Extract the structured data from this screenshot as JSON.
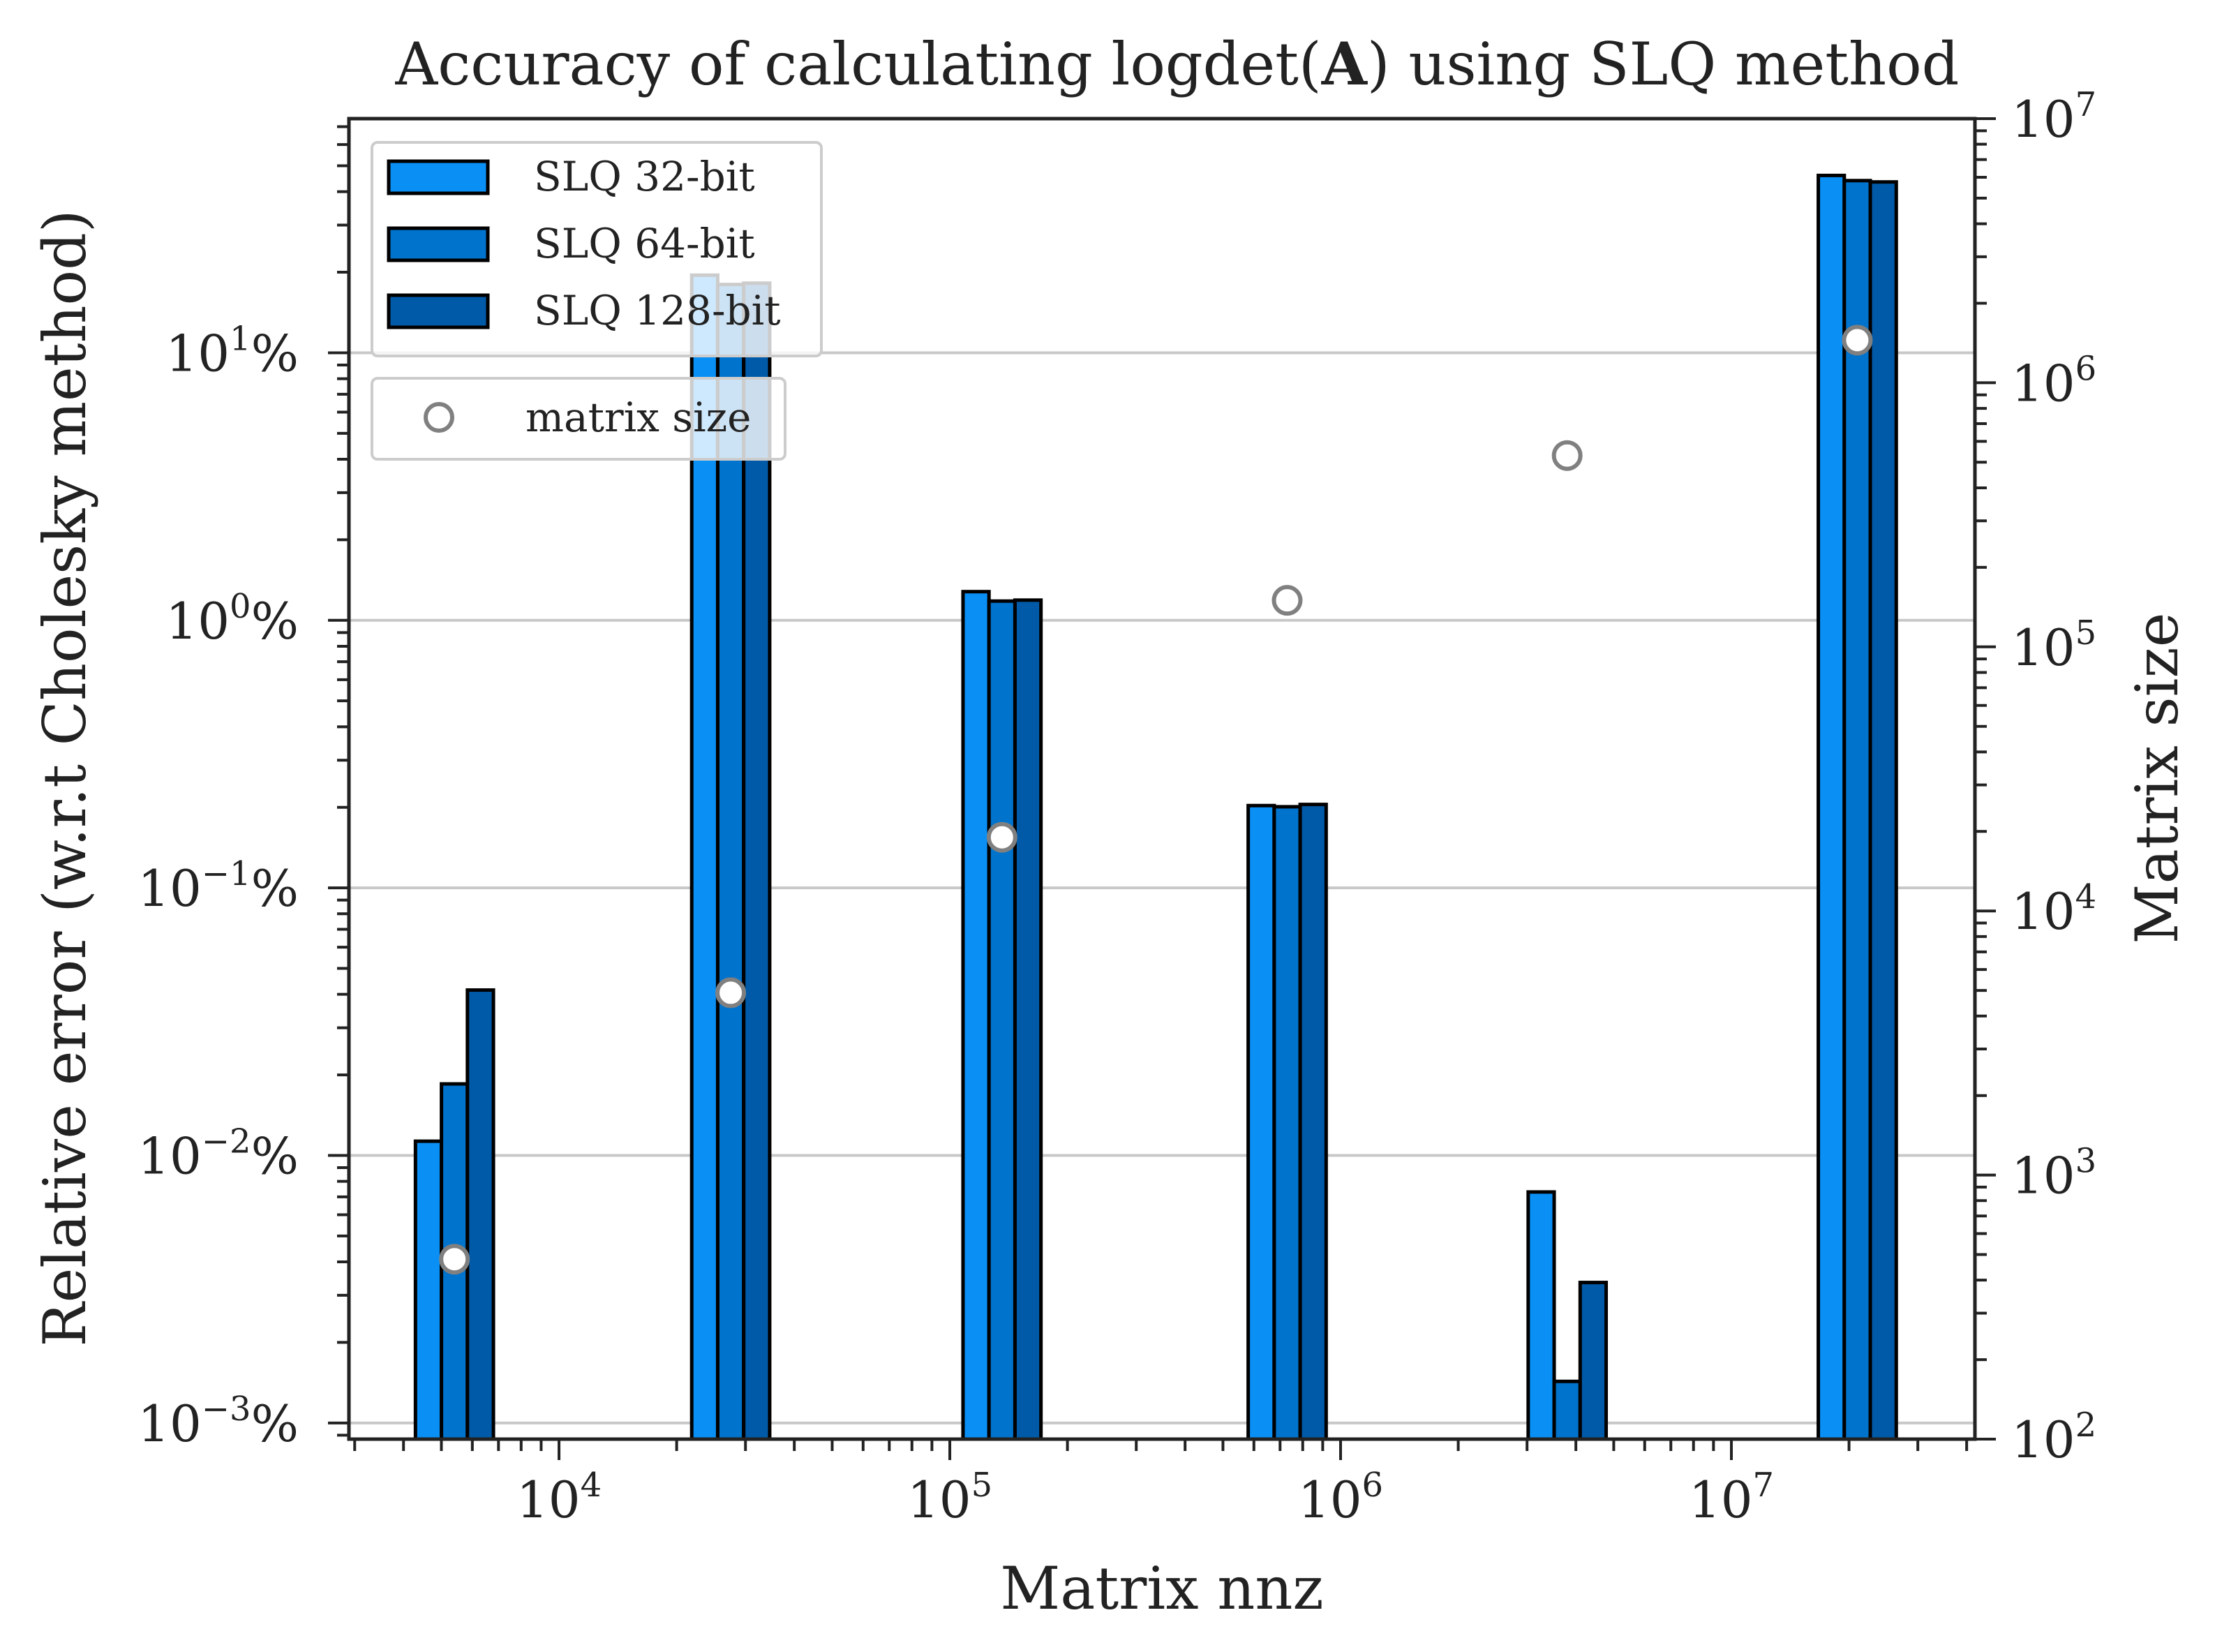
{
  "chart_data": {
    "type": "bar",
    "title": "Accuracy of calculating logdet(A) using SLQ method",
    "xlabel": "Matrix nnz",
    "ylabel": "Relative error (w.r.t Cholesky method)",
    "y2label": "Matrix size",
    "xscale": "log",
    "yscale": "log",
    "y2scale": "log",
    "xlim": [
      2900,
      42000000
    ],
    "ylim": [
      0.00087,
      75
    ],
    "y2lim": [
      100,
      10000000
    ],
    "grid": "horizontal major",
    "x_tick_labels": [
      "10^4",
      "10^5",
      "10^6",
      "10^7"
    ],
    "y_tick_labels": [
      "10^-3%",
      "10^-2%",
      "10^-1%",
      "10^0%",
      "10^1%"
    ],
    "y2_tick_labels": [
      "10^2",
      "10^3",
      "10^4",
      "10^5",
      "10^6",
      "10^7"
    ],
    "x_ticks": [
      10000,
      100000,
      1000000,
      10000000
    ],
    "y_ticks": [
      0.001,
      0.01,
      0.1,
      1,
      10
    ],
    "y2_ticks": [
      100,
      1000,
      10000,
      100000,
      1000000,
      10000000
    ],
    "nnz": [
      5400,
      27500,
      136000,
      730000,
      3800000,
      21000000
    ],
    "series": [
      {
        "name": "SLQ 32-bit",
        "color": "#0a8ff5",
        "values": [
          0.0113,
          19.5,
          1.28,
          0.203,
          0.0073,
          46.0
        ]
      },
      {
        "name": "SLQ 64-bit",
        "color": "#0073cc",
        "values": [
          0.0185,
          18.0,
          1.18,
          0.201,
          0.00143,
          44.0
        ]
      },
      {
        "name": "SLQ 128-bit",
        "color": "#005aa8",
        "values": [
          0.0415,
          18.2,
          1.19,
          0.205,
          0.00335,
          43.5
        ]
      }
    ],
    "matrix_size": {
      "name": "matrix size",
      "values": [
        480,
        4900,
        19000,
        150000,
        530000,
        1450000
      ]
    },
    "legend_position": "upper-left"
  }
}
